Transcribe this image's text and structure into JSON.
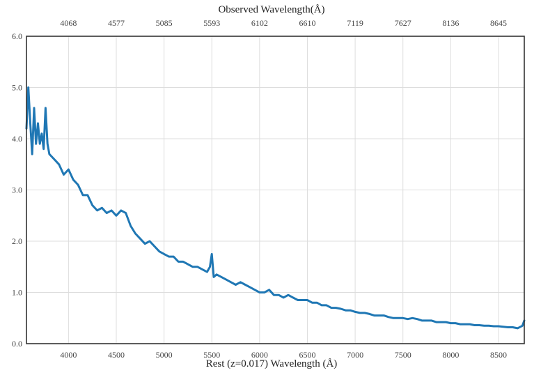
{
  "chart_data": {
    "type": "line",
    "title": "",
    "xlabel": "Rest (z=0.017) Wavelength (Å)",
    "x2label": "Observed Wavelength(Å)",
    "ylabel": "",
    "xlim": [
      3560,
      8770
    ],
    "ylim": [
      0,
      6
    ],
    "x_ticks": [
      4000,
      4500,
      5000,
      5500,
      6000,
      6500,
      7000,
      7500,
      8000,
      8500
    ],
    "x2_ticks": [
      "4068",
      "4577",
      "5085",
      "5593",
      "6102",
      "6610",
      "7119",
      "7627",
      "8136",
      "8645"
    ],
    "y_ticks": [
      "0.0",
      "1.0",
      "2.0",
      "3.0",
      "4.0",
      "5.0",
      "6.0"
    ],
    "grid": true,
    "colors": {
      "line": "#1f77b4",
      "frame": "#333333",
      "grid": "#dddddd"
    },
    "series": [
      {
        "name": "",
        "x": [
          3560,
          3580,
          3600,
          3620,
          3640,
          3660,
          3680,
          3700,
          3720,
          3740,
          3760,
          3780,
          3800,
          3850,
          3900,
          3950,
          4000,
          4050,
          4100,
          4150,
          4200,
          4250,
          4300,
          4350,
          4400,
          4450,
          4500,
          4550,
          4600,
          4650,
          4700,
          4750,
          4800,
          4850,
          4900,
          4950,
          5000,
          5050,
          5100,
          5150,
          5200,
          5250,
          5300,
          5350,
          5400,
          5450,
          5480,
          5500,
          5520,
          5550,
          5600,
          5650,
          5700,
          5750,
          5800,
          5850,
          5900,
          5950,
          6000,
          6050,
          6100,
          6150,
          6200,
          6250,
          6300,
          6350,
          6400,
          6450,
          6500,
          6550,
          6600,
          6650,
          6700,
          6750,
          6800,
          6850,
          6900,
          6950,
          7000,
          7050,
          7100,
          7150,
          7200,
          7250,
          7300,
          7350,
          7400,
          7450,
          7500,
          7550,
          7600,
          7650,
          7700,
          7750,
          7800,
          7850,
          7900,
          7950,
          8000,
          8050,
          8100,
          8150,
          8200,
          8250,
          8300,
          8350,
          8400,
          8450,
          8500,
          8550,
          8600,
          8650,
          8700,
          8750,
          8770
        ],
        "y": [
          4.2,
          5.0,
          4.3,
          3.7,
          4.6,
          3.9,
          4.3,
          3.9,
          4.1,
          3.8,
          4.6,
          3.9,
          3.7,
          3.6,
          3.5,
          3.3,
          3.4,
          3.2,
          3.1,
          2.9,
          2.9,
          2.7,
          2.6,
          2.65,
          2.55,
          2.6,
          2.5,
          2.6,
          2.55,
          2.3,
          2.15,
          2.05,
          1.95,
          2.0,
          1.9,
          1.8,
          1.75,
          1.7,
          1.7,
          1.6,
          1.6,
          1.55,
          1.5,
          1.5,
          1.45,
          1.4,
          1.5,
          1.75,
          1.3,
          1.35,
          1.3,
          1.25,
          1.2,
          1.15,
          1.2,
          1.15,
          1.1,
          1.05,
          1.0,
          1.0,
          1.05,
          0.95,
          0.95,
          0.9,
          0.95,
          0.9,
          0.85,
          0.85,
          0.85,
          0.8,
          0.8,
          0.75,
          0.75,
          0.7,
          0.7,
          0.68,
          0.65,
          0.65,
          0.62,
          0.6,
          0.6,
          0.58,
          0.55,
          0.55,
          0.55,
          0.52,
          0.5,
          0.5,
          0.5,
          0.48,
          0.5,
          0.48,
          0.45,
          0.45,
          0.45,
          0.42,
          0.42,
          0.42,
          0.4,
          0.4,
          0.38,
          0.38,
          0.38,
          0.36,
          0.36,
          0.35,
          0.35,
          0.34,
          0.34,
          0.33,
          0.32,
          0.32,
          0.3,
          0.35,
          0.45
        ]
      }
    ]
  }
}
